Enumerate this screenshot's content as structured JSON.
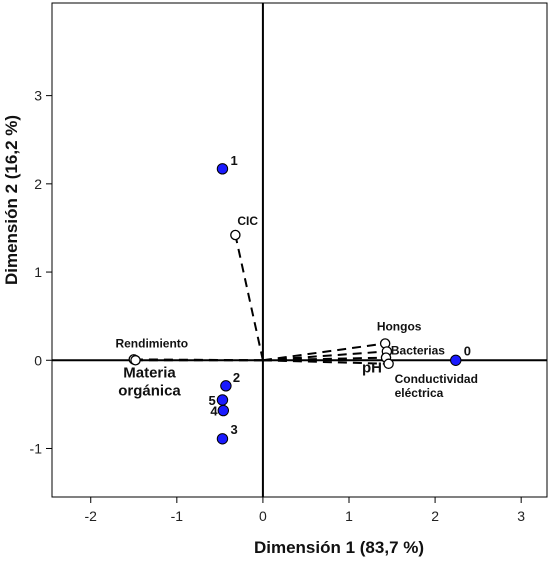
{
  "chart_data": {
    "type": "scatter",
    "title": "",
    "xlabel": "Dimensión 1 (83,7 %)",
    "ylabel": "Dimensión 2 (16,2 %)",
    "xlim": [
      -2.45,
      3.3
    ],
    "ylim": [
      -1.55,
      4.05
    ],
    "x_ticks": [
      -2,
      -1,
      0,
      1,
      2,
      3
    ],
    "y_ticks": [
      -1,
      0,
      1,
      2,
      3
    ],
    "x_tick_labels": [
      "-2",
      "-1",
      "0",
      "1",
      "2",
      "3"
    ],
    "y_tick_labels": [
      "-1",
      "0",
      "1",
      "2",
      "3"
    ],
    "grid": false,
    "reference_lines": {
      "x": 0,
      "y": 0
    },
    "colors": {
      "observation_fill": "#1a1aff",
      "variable_fill": "#ffffff",
      "outline": "#000000",
      "vector": "#000000"
    },
    "variables": [
      {
        "label": "CIC",
        "x": -0.32,
        "y": 1.42
      },
      {
        "label": "Rendimiento",
        "x": -1.5,
        "y": 0.01
      },
      {
        "label": "Materia orgánica",
        "x": -1.48,
        "y": 0.0
      },
      {
        "label": "Hongos",
        "x": 1.42,
        "y": 0.19
      },
      {
        "label": "Bacterias",
        "x": 1.44,
        "y": 0.1
      },
      {
        "label": "pH",
        "x": 1.43,
        "y": 0.03
      },
      {
        "label": "Conductividad eléctrica",
        "x": 1.46,
        "y": -0.04
      }
    ],
    "observations": [
      {
        "label": "0",
        "x": 2.24,
        "y": 0.0
      },
      {
        "label": "1",
        "x": -0.47,
        "y": 2.17
      },
      {
        "label": "2",
        "x": -0.43,
        "y": -0.29
      },
      {
        "label": "5",
        "x": -0.47,
        "y": -0.45
      },
      {
        "label": "4",
        "x": -0.46,
        "y": -0.57
      },
      {
        "label": "3",
        "x": -0.47,
        "y": -0.89
      }
    ]
  }
}
